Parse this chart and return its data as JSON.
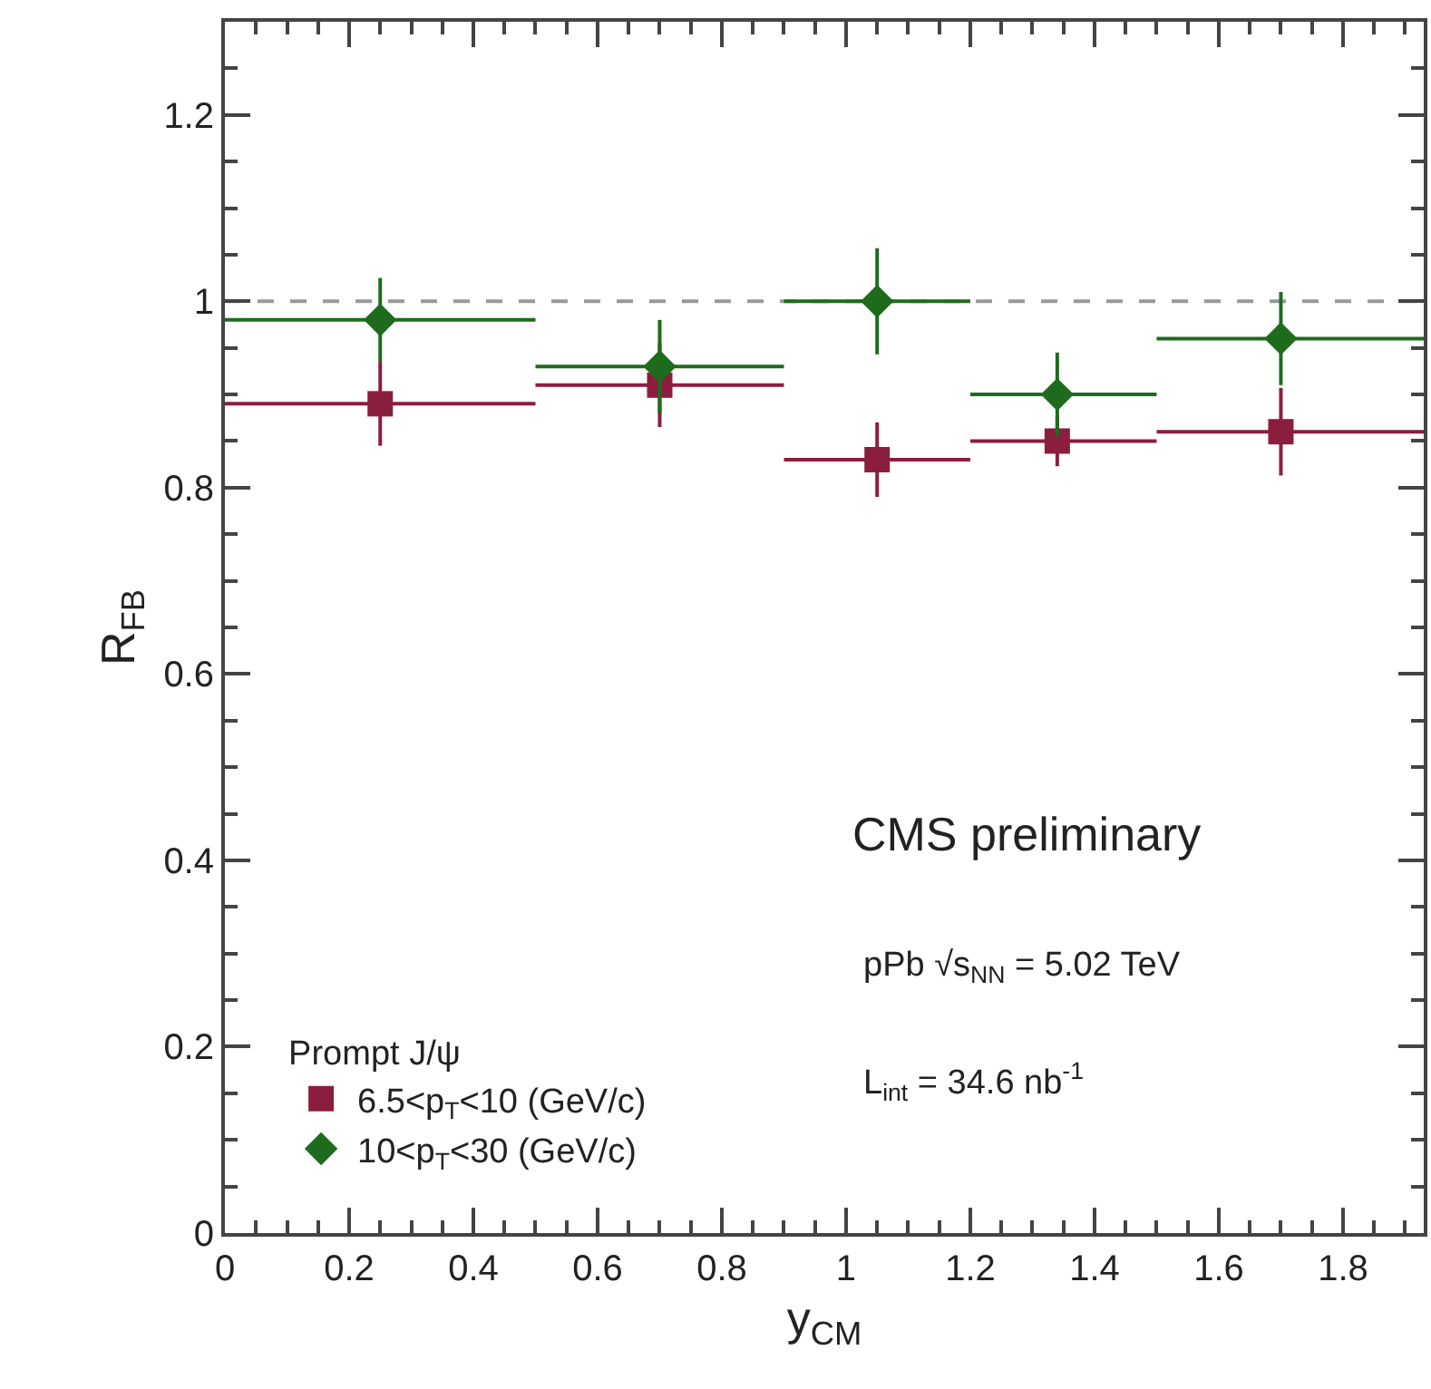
{
  "chart_data": {
    "type": "scatter",
    "xlabel": "y$_{CM}$",
    "ylabel": "R$_{FB}$",
    "legend_title": "Prompt J/ψ",
    "x": [
      0.25,
      0.7,
      1.05,
      1.34,
      1.7
    ],
    "series": [
      {
        "name": "6.5<p$_{T}$<10 (GeV/c)",
        "color": "#8b1e3f",
        "marker": "square",
        "values": [
          0.89,
          0.91,
          0.83,
          0.85,
          0.86
        ],
        "errors": [
          0.045,
          0.045,
          0.04,
          0.027,
          0.047
        ],
        "xerrors": [
          [
            0,
            0.5
          ],
          [
            0.5,
            0.9
          ],
          [
            0.9,
            1.2
          ],
          [
            1.2,
            1.5
          ],
          [
            1.5,
            1.93
          ]
        ]
      },
      {
        "name": "10<p$_{T}$<30 (GeV/c)",
        "color": "#1e6b1e",
        "marker": "diamond",
        "values": [
          0.98,
          0.93,
          1.0,
          0.9,
          0.96
        ],
        "errors": [
          0.045,
          0.05,
          0.057,
          0.045,
          0.05
        ],
        "xerrors": [
          [
            0,
            0.5
          ],
          [
            0.5,
            0.9
          ],
          [
            0.9,
            1.2
          ],
          [
            1.2,
            1.5
          ],
          [
            1.5,
            1.93
          ]
        ]
      }
    ],
    "xlim": [
      0,
      1.93
    ],
    "xticks": [
      0,
      0.2,
      0.4,
      0.6,
      0.8,
      1,
      1.2,
      1.4,
      1.6,
      1.8
    ],
    "ylim": [
      0,
      1.3
    ],
    "yticks": [
      0,
      0.2,
      0.4,
      0.6,
      0.8,
      1,
      1.2
    ],
    "ref_lines": [
      {
        "axis": "y",
        "value": 1,
        "color": "#999999",
        "line_style": "dashed"
      }
    ],
    "annotations": [
      "CMS preliminary",
      "pPb √s$_{NN}$ = 5.02 TeV",
      "L$_{int}$ = 34.6 nb$^{-1}$"
    ],
    "legend": "bottom left",
    "grid": false
  }
}
